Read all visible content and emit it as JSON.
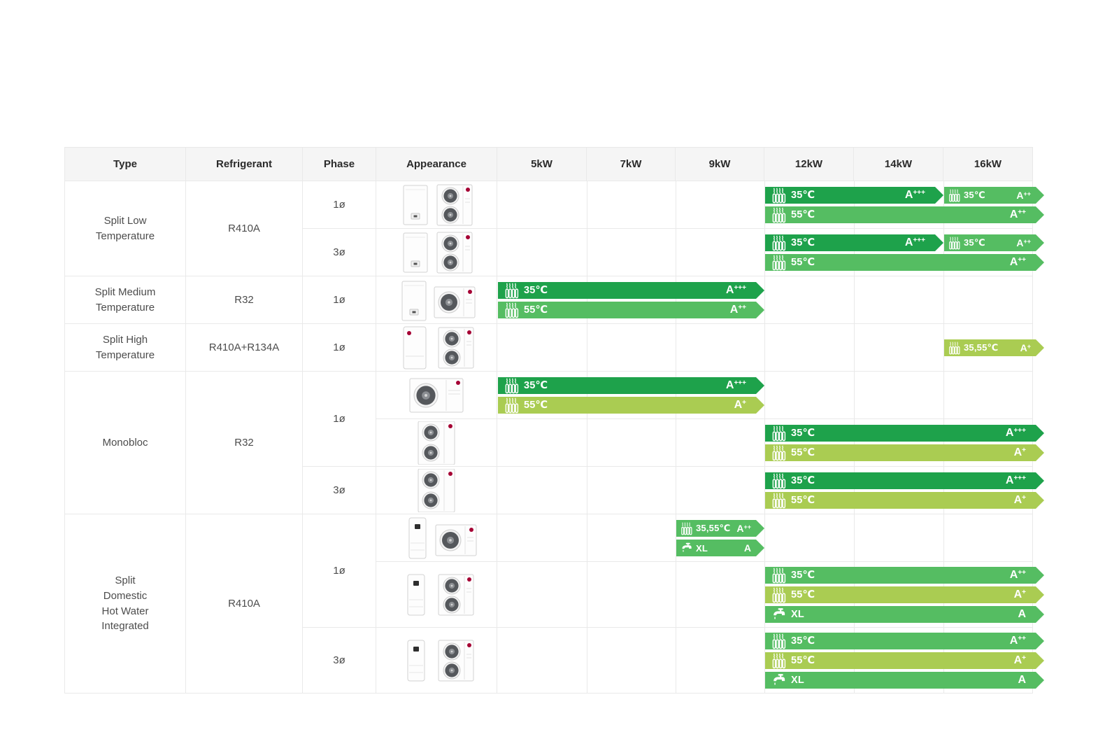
{
  "table": {
    "columns": [
      "Type",
      "Refrigerant",
      "Phase",
      "Appearance",
      "5kW",
      "7kW",
      "9kW",
      "12kW",
      "14kW",
      "16kW"
    ],
    "colors": {
      "dark": "#1ea24b",
      "medium": "#55bd62",
      "lime": "#aacc52",
      "lg_logo_red": "#a50034"
    },
    "groups": [
      {
        "type": "Split Low\nTemperature",
        "refrigerant": "R410A",
        "phases": [
          {
            "phase": "1ø",
            "rows": [
              {
                "appearance": "wall-indoor-dual-fan-outdoor",
                "lines": [
                  [
                    {
                      "icon": "radiator",
                      "label": "35℃",
                      "rating": "A+++",
                      "color": "dark",
                      "span": [
                        "12kW",
                        "14kW"
                      ],
                      "extends": false
                    },
                    {
                      "icon": "radiator",
                      "label": "35℃",
                      "rating": "A++",
                      "color": "medium",
                      "span": [
                        "16kW",
                        "16kW"
                      ],
                      "extends": true
                    }
                  ],
                  [
                    {
                      "icon": "radiator",
                      "label": "55℃",
                      "rating": "A++",
                      "color": "medium",
                      "span": [
                        "12kW",
                        "16kW"
                      ],
                      "extends": true
                    }
                  ]
                ]
              }
            ]
          },
          {
            "phase": "3ø",
            "rows": [
              {
                "appearance": "wall-indoor-dual-fan-outdoor",
                "lines": [
                  [
                    {
                      "icon": "radiator",
                      "label": "35℃",
                      "rating": "A+++",
                      "color": "dark",
                      "span": [
                        "12kW",
                        "14kW"
                      ],
                      "extends": false
                    },
                    {
                      "icon": "radiator",
                      "label": "35℃",
                      "rating": "A++",
                      "color": "medium",
                      "span": [
                        "16kW",
                        "16kW"
                      ],
                      "extends": true
                    }
                  ],
                  [
                    {
                      "icon": "radiator",
                      "label": "55℃",
                      "rating": "A++",
                      "color": "medium",
                      "span": [
                        "12kW",
                        "16kW"
                      ],
                      "extends": true
                    }
                  ]
                ]
              }
            ]
          }
        ]
      },
      {
        "type": "Split Medium\nTemperature",
        "refrigerant": "R32",
        "phases": [
          {
            "phase": "1ø",
            "rows": [
              {
                "appearance": "wall-indoor-single-fan-outdoor",
                "lines": [
                  [
                    {
                      "icon": "radiator",
                      "label": "35℃",
                      "rating": "A+++",
                      "color": "dark",
                      "span": [
                        "5kW",
                        "9kW"
                      ],
                      "extends": false
                    }
                  ],
                  [
                    {
                      "icon": "radiator",
                      "label": "55℃",
                      "rating": "A++",
                      "color": "medium",
                      "span": [
                        "5kW",
                        "9kW"
                      ],
                      "extends": false
                    }
                  ]
                ]
              }
            ]
          }
        ]
      },
      {
        "type": "Split High\nTemperature",
        "refrigerant": "R410A+R134A",
        "phases": [
          {
            "phase": "1ø",
            "rows": [
              {
                "appearance": "floor-indoor-dual-fan-outdoor",
                "lines": [
                  [
                    {
                      "icon": "radiator",
                      "label": "35,55℃",
                      "rating": "A+",
                      "color": "lime",
                      "span": [
                        "16kW",
                        "16kW"
                      ],
                      "extends": true
                    }
                  ]
                ]
              }
            ]
          }
        ]
      },
      {
        "type": "Monobloc",
        "refrigerant": "R32",
        "phases": [
          {
            "phase": "1ø",
            "rows": [
              {
                "appearance": "monobloc-single-fan",
                "lines": [
                  [
                    {
                      "icon": "radiator",
                      "label": "35℃",
                      "rating": "A+++",
                      "color": "dark",
                      "span": [
                        "5kW",
                        "9kW"
                      ],
                      "extends": false
                    }
                  ],
                  [
                    {
                      "icon": "radiator",
                      "label": "55℃",
                      "rating": "A+",
                      "color": "lime",
                      "span": [
                        "5kW",
                        "9kW"
                      ],
                      "extends": false
                    }
                  ]
                ]
              },
              {
                "appearance": "monobloc-dual-fan",
                "lines": [
                  [
                    {
                      "icon": "radiator",
                      "label": "35℃",
                      "rating": "A+++",
                      "color": "dark",
                      "span": [
                        "12kW",
                        "16kW"
                      ],
                      "extends": true
                    }
                  ],
                  [
                    {
                      "icon": "radiator",
                      "label": "55℃",
                      "rating": "A+",
                      "color": "lime",
                      "span": [
                        "12kW",
                        "16kW"
                      ],
                      "extends": true
                    }
                  ]
                ]
              }
            ]
          },
          {
            "phase": "3ø",
            "rows": [
              {
                "appearance": "monobloc-dual-fan",
                "lines": [
                  [
                    {
                      "icon": "radiator",
                      "label": "35℃",
                      "rating": "A+++",
                      "color": "dark",
                      "span": [
                        "12kW",
                        "16kW"
                      ],
                      "extends": true
                    }
                  ],
                  [
                    {
                      "icon": "radiator",
                      "label": "55℃",
                      "rating": "A+",
                      "color": "lime",
                      "span": [
                        "12kW",
                        "16kW"
                      ],
                      "extends": true
                    }
                  ]
                ]
              }
            ]
          }
        ]
      },
      {
        "type": "Split\nDomestic\nHot Water\nIntegrated",
        "refrigerant": "R410A",
        "phases": [
          {
            "phase": "1ø",
            "rows": [
              {
                "appearance": "tower-indoor-single-fan-outdoor",
                "lines": [
                  [
                    {
                      "icon": "radiator",
                      "label": "35,55℃",
                      "rating": "A++",
                      "color": "medium",
                      "span": [
                        "9kW",
                        "9kW"
                      ],
                      "extends": false
                    }
                  ],
                  [
                    {
                      "icon": "faucet",
                      "label": "XL",
                      "rating": "A",
                      "color": "medium",
                      "span": [
                        "9kW",
                        "9kW"
                      ],
                      "extends": false
                    }
                  ]
                ]
              },
              {
                "appearance": "tower-indoor-dual-fan-outdoor",
                "lines": [
                  [
                    {
                      "icon": "radiator",
                      "label": "35℃",
                      "rating": "A++",
                      "color": "medium",
                      "span": [
                        "12kW",
                        "16kW"
                      ],
                      "extends": true
                    }
                  ],
                  [
                    {
                      "icon": "radiator",
                      "label": "55℃",
                      "rating": "A+",
                      "color": "lime",
                      "span": [
                        "12kW",
                        "16kW"
                      ],
                      "extends": true
                    }
                  ],
                  [
                    {
                      "icon": "faucet",
                      "label": "XL",
                      "rating": "A",
                      "color": "medium",
                      "span": [
                        "12kW",
                        "16kW"
                      ],
                      "extends": true
                    }
                  ]
                ]
              }
            ]
          },
          {
            "phase": "3ø",
            "rows": [
              {
                "appearance": "tower-indoor-dual-fan-outdoor",
                "lines": [
                  [
                    {
                      "icon": "radiator",
                      "label": "35℃",
                      "rating": "A++",
                      "color": "medium",
                      "span": [
                        "12kW",
                        "16kW"
                      ],
                      "extends": true
                    }
                  ],
                  [
                    {
                      "icon": "radiator",
                      "label": "55℃",
                      "rating": "A+",
                      "color": "lime",
                      "span": [
                        "12kW",
                        "16kW"
                      ],
                      "extends": true
                    }
                  ],
                  [
                    {
                      "icon": "faucet",
                      "label": "XL",
                      "rating": "A",
                      "color": "medium",
                      "span": [
                        "12kW",
                        "16kW"
                      ],
                      "extends": true
                    }
                  ]
                ]
              }
            ]
          }
        ]
      }
    ]
  }
}
